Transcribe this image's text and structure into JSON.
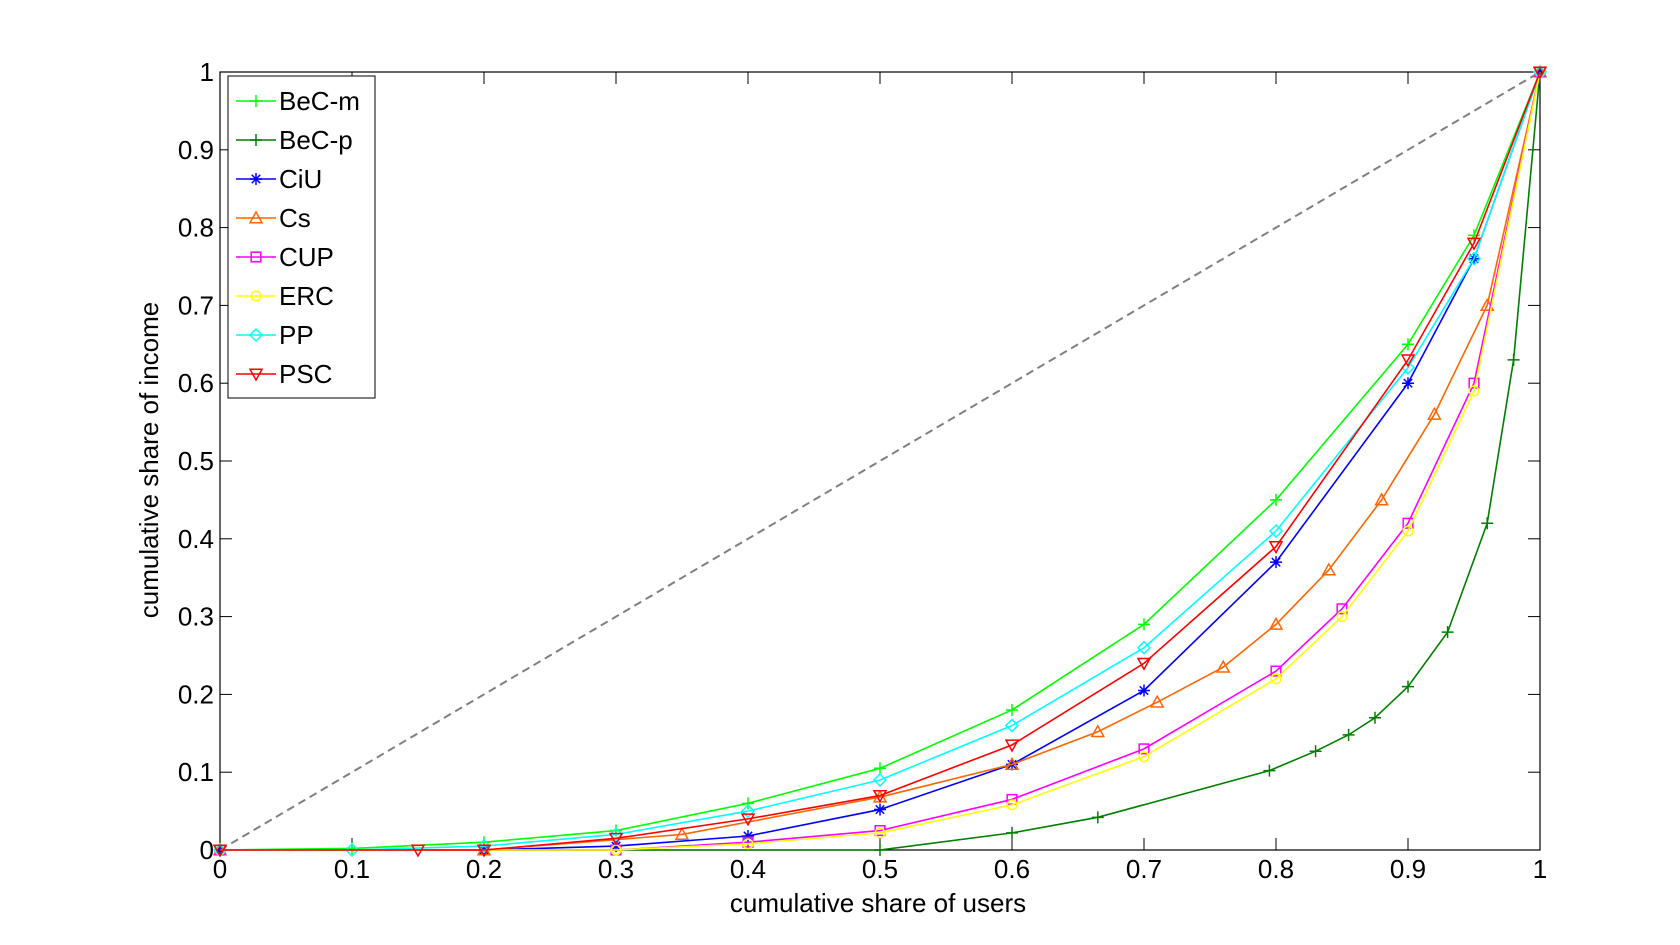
{
  "chart_data": {
    "type": "line",
    "title": "",
    "xlabel": "cumulative share of users",
    "ylabel": "cumulative share of income",
    "xlim": [
      0,
      1
    ],
    "ylim": [
      0,
      1
    ],
    "xticks": [
      "0",
      "0.1",
      "0.2",
      "0.3",
      "0.4",
      "0.5",
      "0.6",
      "0.7",
      "0.8",
      "0.9",
      "1"
    ],
    "yticks": [
      "0",
      "0.1",
      "0.2",
      "0.3",
      "0.4",
      "0.5",
      "0.6",
      "0.7",
      "0.8",
      "0.9",
      "1"
    ],
    "grid": false,
    "legend_position": "top-left",
    "reference_line": {
      "style": "dashed",
      "color": "#808080",
      "x": [
        0,
        1
      ],
      "y": [
        0,
        1
      ]
    },
    "series": [
      {
        "name": "BeC-m",
        "color": "#00ff00",
        "marker": "plus",
        "x": [
          0,
          0.1,
          0.2,
          0.3,
          0.4,
          0.5,
          0.6,
          0.7,
          0.8,
          0.9,
          0.95,
          1
        ],
        "y": [
          0,
          0.002,
          0.01,
          0.025,
          0.06,
          0.105,
          0.18,
          0.29,
          0.45,
          0.65,
          0.79,
          1
        ]
      },
      {
        "name": "BeC-p",
        "color": "#007f00",
        "marker": "plus",
        "x": [
          0,
          0.5,
          0.6,
          0.665,
          0.795,
          0.83,
          0.855,
          0.875,
          0.9,
          0.93,
          0.96,
          0.98,
          1
        ],
        "y": [
          0,
          0,
          0.022,
          0.042,
          0.102,
          0.127,
          0.148,
          0.17,
          0.21,
          0.28,
          0.42,
          0.63,
          1
        ]
      },
      {
        "name": "CiU",
        "color": "#0000ff",
        "marker": "star",
        "x": [
          0,
          0.2,
          0.3,
          0.4,
          0.5,
          0.6,
          0.7,
          0.8,
          0.9,
          0.95,
          1
        ],
        "y": [
          0,
          0,
          0.005,
          0.018,
          0.052,
          0.11,
          0.205,
          0.37,
          0.6,
          0.76,
          1
        ]
      },
      {
        "name": "Cs",
        "color": "#ff6600",
        "marker": "triangle-up",
        "x": [
          0,
          0.2,
          0.35,
          0.5,
          0.6,
          0.665,
          0.71,
          0.76,
          0.8,
          0.84,
          0.88,
          0.92,
          0.96,
          1
        ],
        "y": [
          0,
          0,
          0.02,
          0.068,
          0.11,
          0.152,
          0.19,
          0.235,
          0.29,
          0.36,
          0.45,
          0.56,
          0.7,
          1
        ]
      },
      {
        "name": "CUP",
        "color": "#ff00ff",
        "marker": "square",
        "x": [
          0,
          0.3,
          0.4,
          0.5,
          0.6,
          0.7,
          0.8,
          0.85,
          0.9,
          0.95,
          1
        ],
        "y": [
          0,
          0,
          0.01,
          0.025,
          0.065,
          0.13,
          0.23,
          0.31,
          0.42,
          0.6,
          1
        ]
      },
      {
        "name": "ERC",
        "color": "#ffff00",
        "marker": "circle",
        "x": [
          0,
          0.3,
          0.4,
          0.5,
          0.6,
          0.7,
          0.8,
          0.85,
          0.9,
          0.95,
          1
        ],
        "y": [
          0,
          0,
          0.008,
          0.022,
          0.058,
          0.12,
          0.22,
          0.3,
          0.41,
          0.59,
          1
        ]
      },
      {
        "name": "PP",
        "color": "#00ffff",
        "marker": "diamond",
        "x": [
          0,
          0.1,
          0.2,
          0.3,
          0.4,
          0.5,
          0.6,
          0.7,
          0.8,
          0.9,
          0.95,
          1
        ],
        "y": [
          0,
          0,
          0.005,
          0.02,
          0.05,
          0.09,
          0.16,
          0.26,
          0.41,
          0.62,
          0.76,
          1
        ]
      },
      {
        "name": "PSC",
        "color": "#ff0000",
        "marker": "triangle-down",
        "x": [
          0,
          0.15,
          0.2,
          0.3,
          0.4,
          0.5,
          0.6,
          0.7,
          0.8,
          0.9,
          0.95,
          1
        ],
        "y": [
          0,
          0,
          0,
          0.015,
          0.04,
          0.07,
          0.135,
          0.24,
          0.39,
          0.63,
          0.78,
          1
        ]
      }
    ]
  }
}
